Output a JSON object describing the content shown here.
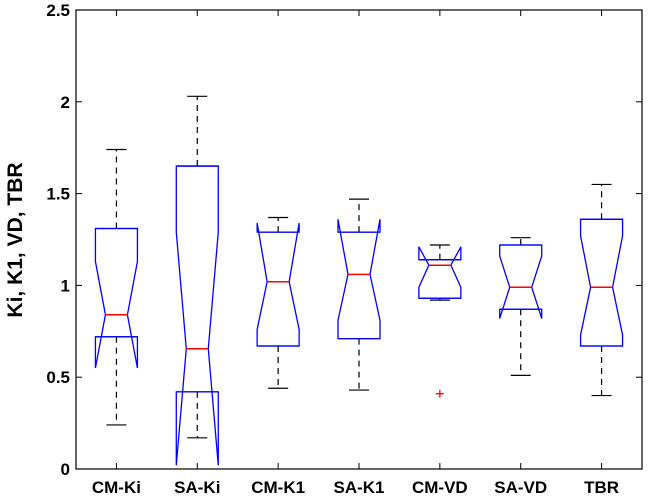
{
  "chart_data": {
    "type": "boxplot",
    "notched": true,
    "ylabel": "Ki, K1, VD, TBR",
    "ylim": [
      0,
      2.5
    ],
    "yticks": [
      {
        "value": 0,
        "label": "0"
      },
      {
        "value": 0.5,
        "label": "0.5"
      },
      {
        "value": 1,
        "label": "1"
      },
      {
        "value": 1.5,
        "label": "1.5"
      },
      {
        "value": 2,
        "label": "2"
      },
      {
        "value": 2.5,
        "label": "2.5"
      }
    ],
    "grid": false,
    "categories": [
      "CM-Ki",
      "SA-Ki",
      "CM-K1",
      "SA-K1",
      "CM-VD",
      "SA-VD",
      "TBR"
    ],
    "boxes": [
      {
        "name": "CM-Ki",
        "whisker_low": 0.24,
        "q1": 0.72,
        "median": 0.84,
        "q3": 1.31,
        "whisker_high": 1.74,
        "notch_low": 0.55,
        "notch_high": 1.13,
        "outliers": []
      },
      {
        "name": "SA-Ki",
        "whisker_low": 0.17,
        "q1": 0.42,
        "median": 0.655,
        "q3": 1.65,
        "whisker_high": 2.03,
        "notch_low": 0.02,
        "notch_high": 1.29,
        "outliers": []
      },
      {
        "name": "CM-K1",
        "whisker_low": 0.44,
        "q1": 0.67,
        "median": 1.02,
        "q3": 1.29,
        "whisker_high": 1.37,
        "notch_low": 0.76,
        "notch_high": 1.34,
        "outliers": []
      },
      {
        "name": "SA-K1",
        "whisker_low": 0.43,
        "q1": 0.71,
        "median": 1.06,
        "q3": 1.29,
        "whisker_high": 1.47,
        "notch_low": 0.81,
        "notch_high": 1.36,
        "outliers": []
      },
      {
        "name": "CM-VD",
        "whisker_low": 0.92,
        "q1": 0.93,
        "median": 1.11,
        "q3": 1.14,
        "whisker_high": 1.22,
        "notch_low": 0.99,
        "notch_high": 1.21,
        "outliers": [
          0.41
        ]
      },
      {
        "name": "SA-VD",
        "whisker_low": 0.51,
        "q1": 0.87,
        "median": 0.99,
        "q3": 1.22,
        "whisker_high": 1.26,
        "notch_low": 0.82,
        "notch_high": 1.16,
        "outliers": []
      },
      {
        "name": "TBR",
        "whisker_low": 0.4,
        "q1": 0.67,
        "median": 0.99,
        "q3": 1.36,
        "whisker_high": 1.55,
        "notch_low": 0.73,
        "notch_high": 1.27,
        "outliers": []
      }
    ],
    "colors": {
      "box": "#0000ff",
      "median": "#ff0000",
      "whisker": "#000000",
      "outlier": "#ff0000",
      "axis": "#000000"
    }
  }
}
